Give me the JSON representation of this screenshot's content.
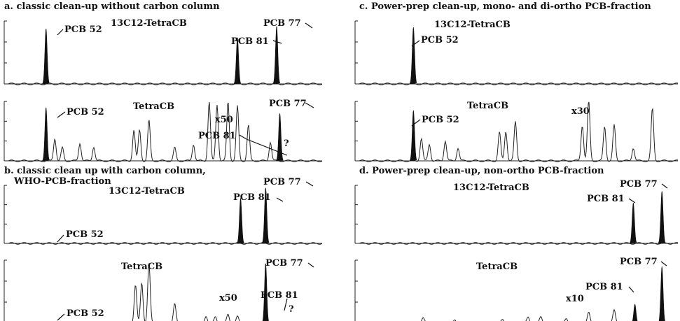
{
  "chart_data": [
    {
      "type": "line",
      "title": "a. classic clean-up without carbon column",
      "subtitle": "",
      "traces": [
        {
          "top_label": "13C12-TetraCB",
          "peaks": [
            {
              "name": "PCB 52",
              "rt": 0.12,
              "height": 0.88,
              "filled": true
            },
            {
              "name": "PCB 81",
              "rt": 0.73,
              "height": 0.74,
              "filled": true
            },
            {
              "name": "PCB 77",
              "rt": 0.855,
              "height": 0.92,
              "filled": true
            }
          ],
          "minor_peaks": [],
          "zoom_label": ""
        },
        {
          "top_label": "TetraCB",
          "peaks": [
            {
              "name": "PCB 52",
              "rt": 0.12,
              "height": 0.9,
              "filled": true
            },
            {
              "name": "PCB 77",
              "rt": 0.865,
              "height": 0.8,
              "filled": true
            },
            {
              "name": "PCB 81",
              "rt": 0.72,
              "height": 0.0,
              "filled": false
            }
          ],
          "minor_peaks": [
            {
              "rt": 0.148,
              "height": 0.38
            },
            {
              "rt": 0.172,
              "height": 0.22
            },
            {
              "rt": 0.228,
              "height": 0.3
            },
            {
              "rt": 0.272,
              "height": 0.24
            },
            {
              "rt": 0.4,
              "height": 0.52
            },
            {
              "rt": 0.418,
              "height": 0.52
            },
            {
              "rt": 0.448,
              "height": 0.68
            },
            {
              "rt": 0.53,
              "height": 0.22
            },
            {
              "rt": 0.59,
              "height": 0.28
            },
            {
              "rt": 0.64,
              "height": 1.0
            },
            {
              "rt": 0.665,
              "height": 0.95
            },
            {
              "rt": 0.7,
              "height": 1.0
            },
            {
              "rt": 0.73,
              "height": 0.92
            },
            {
              "rt": 0.765,
              "height": 0.6
            },
            {
              "rt": 0.835,
              "height": 0.32
            }
          ],
          "zoom_label": "x50",
          "unknown_mark": "?"
        }
      ]
    },
    {
      "type": "line",
      "title": "b. classic clean up with carbon column,",
      "subtitle": "WHO-PCB-fraction",
      "traces": [
        {
          "top_label": "13C12-TetraCB",
          "peaks": [
            {
              "name": "PCB 52",
              "rt": 0.12,
              "height": 0.02,
              "filled": false
            },
            {
              "name": "PCB 81",
              "rt": 0.74,
              "height": 0.78,
              "filled": true
            },
            {
              "name": "PCB 77",
              "rt": 0.82,
              "height": 0.96,
              "filled": true
            }
          ],
          "minor_peaks": [],
          "zoom_label": ""
        },
        {
          "top_label": "TetraCB",
          "peaks": [
            {
              "name": "PCB 52",
              "rt": 0.12,
              "height": 0.0,
              "filled": false
            },
            {
              "name": "PCB 77",
              "rt": 0.82,
              "height": 0.95,
              "filled": true
            },
            {
              "name": "PCB 81",
              "rt": 0.74,
              "height": 0.0,
              "filled": false
            }
          ],
          "minor_peaks": [
            {
              "rt": 0.405,
              "height": 0.6
            },
            {
              "rt": 0.425,
              "height": 0.65
            },
            {
              "rt": 0.448,
              "height": 0.95
            },
            {
              "rt": 0.53,
              "height": 0.3
            },
            {
              "rt": 0.63,
              "height": 0.12
            },
            {
              "rt": 0.66,
              "height": 0.1
            },
            {
              "rt": 0.7,
              "height": 0.14
            },
            {
              "rt": 0.73,
              "height": 0.1
            }
          ],
          "zoom_label": "x50",
          "unknown_mark": "?"
        }
      ]
    },
    {
      "type": "line",
      "title": "c. Power-prep clean-up, mono- and di-ortho PCB-fraction",
      "subtitle": "",
      "traces": [
        {
          "top_label": "13C12-TetraCB",
          "peaks": [
            {
              "name": "PCB 52",
              "rt": 0.17,
              "height": 0.9,
              "filled": true
            }
          ],
          "minor_peaks": [],
          "zoom_label": ""
        },
        {
          "top_label": "TetraCB",
          "peaks": [
            {
              "name": "PCB 52",
              "rt": 0.17,
              "height": 0.85,
              "filled": true
            }
          ],
          "minor_peaks": [
            {
              "rt": 0.195,
              "height": 0.38
            },
            {
              "rt": 0.22,
              "height": 0.28
            },
            {
              "rt": 0.27,
              "height": 0.34
            },
            {
              "rt": 0.31,
              "height": 0.22
            },
            {
              "rt": 0.44,
              "height": 0.48
            },
            {
              "rt": 0.46,
              "height": 0.5
            },
            {
              "rt": 0.49,
              "height": 0.66
            },
            {
              "rt": 0.7,
              "height": 0.6
            },
            {
              "rt": 0.72,
              "height": 1.0
            },
            {
              "rt": 0.77,
              "height": 0.58
            },
            {
              "rt": 0.8,
              "height": 0.6
            },
            {
              "rt": 0.86,
              "height": 0.22
            },
            {
              "rt": 0.92,
              "height": 0.88
            }
          ],
          "zoom_label": "x30"
        }
      ]
    },
    {
      "type": "line",
      "title": "d. Power-prep clean-up, non-ortho PCB-fraction",
      "subtitle": "",
      "traces": [
        {
          "top_label": "13C12-TetraCB",
          "peaks": [
            {
              "name": "PCB 81",
              "rt": 0.86,
              "height": 0.7,
              "filled": true
            },
            {
              "name": "PCB 77",
              "rt": 0.95,
              "height": 0.9,
              "filled": true
            }
          ],
          "minor_peaks": [],
          "zoom_label": ""
        },
        {
          "top_label": "TetraCB",
          "peaks": [
            {
              "name": "PCB 81",
              "rt": 0.865,
              "height": 0.3,
              "filled": true
            },
            {
              "name": "PCB 77",
              "rt": 0.95,
              "height": 0.9,
              "filled": true
            }
          ],
          "minor_peaks": [
            {
              "rt": 0.2,
              "height": 0.08
            },
            {
              "rt": 0.3,
              "height": 0.06
            },
            {
              "rt": 0.45,
              "height": 0.05
            },
            {
              "rt": 0.53,
              "height": 0.09
            },
            {
              "rt": 0.57,
              "height": 0.1
            },
            {
              "rt": 0.65,
              "height": 0.07
            },
            {
              "rt": 0.72,
              "height": 0.16
            },
            {
              "rt": 0.8,
              "height": 0.2
            }
          ],
          "zoom_label": "x10"
        }
      ]
    }
  ]
}
